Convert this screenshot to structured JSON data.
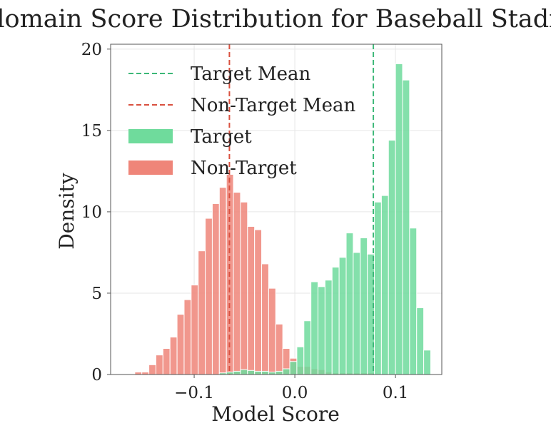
{
  "chart_data": {
    "type": "histogram",
    "title": "In-domain Score Distribution for Baseball Stadium",
    "xlabel": "Model Score",
    "ylabel": "Density",
    "xlim": [
      -0.183,
      0.146
    ],
    "ylim": [
      0,
      20.3
    ],
    "x_ticks": [
      {
        "value": -0.1,
        "label": "−0.1"
      },
      {
        "value": 0.0,
        "label": "0.0"
      },
      {
        "value": 0.1,
        "label": "0.1"
      }
    ],
    "y_ticks": [
      {
        "value": 0,
        "label": "0"
      },
      {
        "value": 5,
        "label": "5"
      },
      {
        "value": 10,
        "label": "10"
      },
      {
        "value": 15,
        "label": "15"
      },
      {
        "value": 20,
        "label": "20"
      }
    ],
    "grid": true,
    "legend_position": "upper-left",
    "legend": [
      {
        "label": "Target Mean",
        "kind": "dashed-line",
        "color": "#3cb878"
      },
      {
        "label": "Non-Target Mean",
        "kind": "dashed-line",
        "color": "#d9503f"
      },
      {
        "label": "Target",
        "kind": "patch",
        "color": "#6fdb9c"
      },
      {
        "label": "Non-Target",
        "kind": "patch",
        "color": "#ef8579"
      }
    ],
    "series": [
      {
        "name": "Non-Target",
        "color": "#ef8579",
        "bin_width": 0.007,
        "bins": [
          {
            "x0": -0.159,
            "value": 0.15
          },
          {
            "x0": -0.152,
            "value": 0.15
          },
          {
            "x0": -0.145,
            "value": 0.6
          },
          {
            "x0": -0.138,
            "value": 1.2
          },
          {
            "x0": -0.131,
            "value": 1.6
          },
          {
            "x0": -0.124,
            "value": 2.3
          },
          {
            "x0": -0.117,
            "value": 3.7
          },
          {
            "x0": -0.11,
            "value": 4.6
          },
          {
            "x0": -0.103,
            "value": 5.5
          },
          {
            "x0": -0.096,
            "value": 7.6
          },
          {
            "x0": -0.089,
            "value": 9.6
          },
          {
            "x0": -0.082,
            "value": 10.5
          },
          {
            "x0": -0.075,
            "value": 11.5
          },
          {
            "x0": -0.068,
            "value": 12.3
          },
          {
            "x0": -0.061,
            "value": 11.2
          },
          {
            "x0": -0.054,
            "value": 10.6
          },
          {
            "x0": -0.047,
            "value": 9.1
          },
          {
            "x0": -0.04,
            "value": 8.9
          },
          {
            "x0": -0.033,
            "value": 6.8
          },
          {
            "x0": -0.026,
            "value": 5.3
          },
          {
            "x0": -0.019,
            "value": 3.1
          },
          {
            "x0": -0.012,
            "value": 1.6
          },
          {
            "x0": -0.005,
            "value": 1.0
          },
          {
            "x0": 0.002,
            "value": 0.5
          },
          {
            "x0": 0.009,
            "value": 0.5
          },
          {
            "x0": 0.016,
            "value": 0.35
          },
          {
            "x0": 0.023,
            "value": 0.3
          },
          {
            "x0": 0.03,
            "value": 0.15
          },
          {
            "x0": 0.037,
            "value": 0.1
          },
          {
            "x0": 0.044,
            "value": 0.1
          },
          {
            "x0": 0.051,
            "value": 0.1
          },
          {
            "x0": 0.058,
            "value": 0.1
          },
          {
            "x0": 0.065,
            "value": 0.1
          },
          {
            "x0": 0.072,
            "value": 0.1
          }
        ]
      },
      {
        "name": "Target",
        "color": "#6fdb9c",
        "bin_width": 0.007,
        "bins": [
          {
            "x0": -0.075,
            "value": 0.1
          },
          {
            "x0": -0.068,
            "value": 0.15
          },
          {
            "x0": -0.061,
            "value": 0.2
          },
          {
            "x0": -0.054,
            "value": 0.3
          },
          {
            "x0": -0.047,
            "value": 0.25
          },
          {
            "x0": -0.04,
            "value": 0.2
          },
          {
            "x0": -0.033,
            "value": 0.2
          },
          {
            "x0": -0.026,
            "value": 0.15
          },
          {
            "x0": -0.019,
            "value": 0.2
          },
          {
            "x0": -0.012,
            "value": 0.35
          },
          {
            "x0": -0.005,
            "value": 0.8
          },
          {
            "x0": 0.002,
            "value": 1.7
          },
          {
            "x0": 0.009,
            "value": 3.3
          },
          {
            "x0": 0.016,
            "value": 5.7
          },
          {
            "x0": 0.023,
            "value": 5.4
          },
          {
            "x0": 0.03,
            "value": 5.8
          },
          {
            "x0": 0.037,
            "value": 6.6
          },
          {
            "x0": 0.044,
            "value": 7.2
          },
          {
            "x0": 0.051,
            "value": 8.7
          },
          {
            "x0": 0.058,
            "value": 7.5
          },
          {
            "x0": 0.065,
            "value": 8.4
          },
          {
            "x0": 0.072,
            "value": 7.4
          },
          {
            "x0": 0.079,
            "value": 10.6
          },
          {
            "x0": 0.086,
            "value": 11.0
          },
          {
            "x0": 0.093,
            "value": 14.4
          },
          {
            "x0": 0.1,
            "value": 19.1
          },
          {
            "x0": 0.107,
            "value": 18.1
          },
          {
            "x0": 0.114,
            "value": 9.0
          },
          {
            "x0": 0.121,
            "value": 4.1
          },
          {
            "x0": 0.128,
            "value": 1.5
          }
        ]
      }
    ],
    "reference_lines": [
      {
        "name": "Target Mean",
        "x": 0.078,
        "color": "#3cb878"
      },
      {
        "name": "Non-Target Mean",
        "x": -0.065,
        "color": "#d9503f"
      }
    ]
  }
}
